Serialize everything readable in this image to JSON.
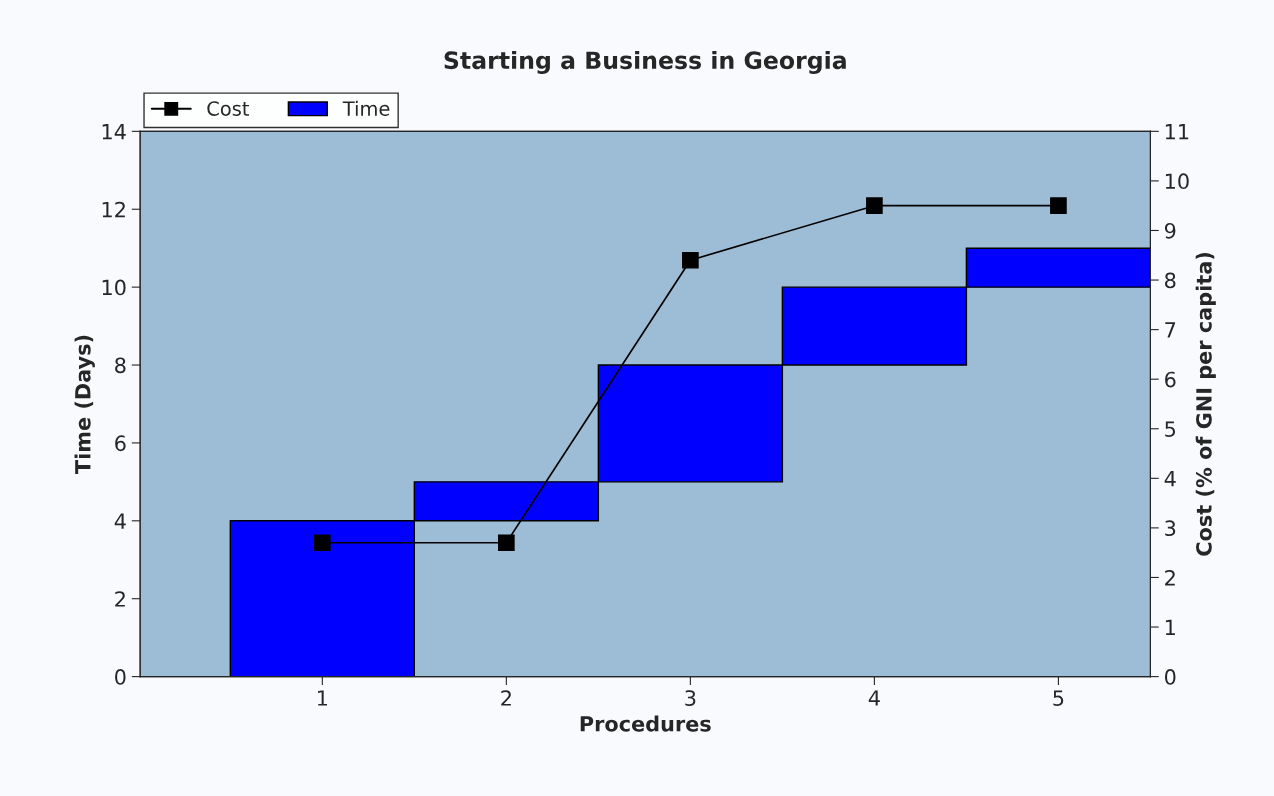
{
  "chart_data": {
    "type": "bar",
    "title": "Starting a Business in Georgia",
    "xlabel": "Procedures",
    "ylabel": "Time (Days)",
    "y2label": "Cost (% of GNI per capita)",
    "categories": [
      "1",
      "2",
      "3",
      "4",
      "5"
    ],
    "series": [
      {
        "name": "Cost",
        "type": "line",
        "axis": "y2",
        "color": "#000000",
        "values": [
          2.7,
          2.7,
          8.4,
          9.5,
          9.5
        ],
        "marker": "square"
      },
      {
        "name": "Time",
        "color": "#0000ff",
        "values": [
          4,
          1,
          3,
          2,
          1
        ],
        "base": [
          0,
          4,
          5,
          8,
          10
        ]
      }
    ],
    "ylim": [
      0,
      14
    ],
    "yticks": [
      0,
      2,
      4,
      6,
      8,
      10,
      12,
      14
    ],
    "y2lim": [
      0,
      11
    ],
    "y2ticks": [
      0,
      1,
      2,
      3,
      4,
      5,
      6,
      7,
      8,
      9,
      10,
      11
    ],
    "grid": false,
    "legend": "top left"
  }
}
